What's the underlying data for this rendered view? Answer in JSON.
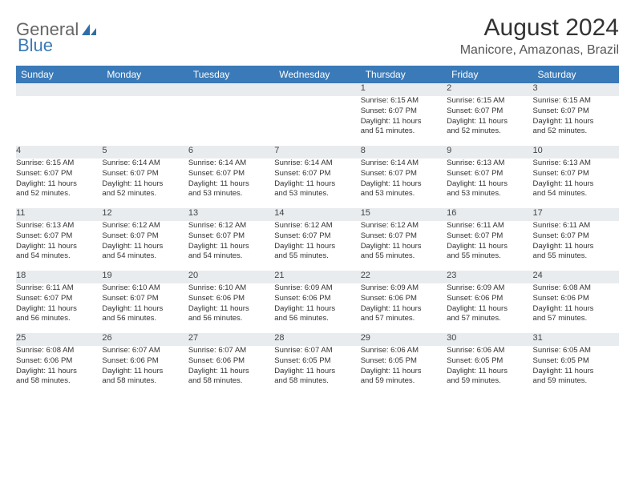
{
  "brand": {
    "part1": "General",
    "part2": "Blue"
  },
  "title": "August 2024",
  "location": "Manicore, Amazonas, Brazil",
  "colors": {
    "header_bg": "#3a7ab8",
    "header_text": "#ffffff",
    "daynum_bg": "#e9ecef",
    "page_bg": "#ffffff",
    "text": "#333333"
  },
  "weekdays": [
    "Sunday",
    "Monday",
    "Tuesday",
    "Wednesday",
    "Thursday",
    "Friday",
    "Saturday"
  ],
  "weeks": [
    [
      null,
      null,
      null,
      null,
      {
        "n": "1",
        "sr": "Sunrise: 6:15 AM",
        "ss": "Sunset: 6:07 PM",
        "d1": "Daylight: 11 hours",
        "d2": "and 51 minutes."
      },
      {
        "n": "2",
        "sr": "Sunrise: 6:15 AM",
        "ss": "Sunset: 6:07 PM",
        "d1": "Daylight: 11 hours",
        "d2": "and 52 minutes."
      },
      {
        "n": "3",
        "sr": "Sunrise: 6:15 AM",
        "ss": "Sunset: 6:07 PM",
        "d1": "Daylight: 11 hours",
        "d2": "and 52 minutes."
      }
    ],
    [
      {
        "n": "4",
        "sr": "Sunrise: 6:15 AM",
        "ss": "Sunset: 6:07 PM",
        "d1": "Daylight: 11 hours",
        "d2": "and 52 minutes."
      },
      {
        "n": "5",
        "sr": "Sunrise: 6:14 AM",
        "ss": "Sunset: 6:07 PM",
        "d1": "Daylight: 11 hours",
        "d2": "and 52 minutes."
      },
      {
        "n": "6",
        "sr": "Sunrise: 6:14 AM",
        "ss": "Sunset: 6:07 PM",
        "d1": "Daylight: 11 hours",
        "d2": "and 53 minutes."
      },
      {
        "n": "7",
        "sr": "Sunrise: 6:14 AM",
        "ss": "Sunset: 6:07 PM",
        "d1": "Daylight: 11 hours",
        "d2": "and 53 minutes."
      },
      {
        "n": "8",
        "sr": "Sunrise: 6:14 AM",
        "ss": "Sunset: 6:07 PM",
        "d1": "Daylight: 11 hours",
        "d2": "and 53 minutes."
      },
      {
        "n": "9",
        "sr": "Sunrise: 6:13 AM",
        "ss": "Sunset: 6:07 PM",
        "d1": "Daylight: 11 hours",
        "d2": "and 53 minutes."
      },
      {
        "n": "10",
        "sr": "Sunrise: 6:13 AM",
        "ss": "Sunset: 6:07 PM",
        "d1": "Daylight: 11 hours",
        "d2": "and 54 minutes."
      }
    ],
    [
      {
        "n": "11",
        "sr": "Sunrise: 6:13 AM",
        "ss": "Sunset: 6:07 PM",
        "d1": "Daylight: 11 hours",
        "d2": "and 54 minutes."
      },
      {
        "n": "12",
        "sr": "Sunrise: 6:12 AM",
        "ss": "Sunset: 6:07 PM",
        "d1": "Daylight: 11 hours",
        "d2": "and 54 minutes."
      },
      {
        "n": "13",
        "sr": "Sunrise: 6:12 AM",
        "ss": "Sunset: 6:07 PM",
        "d1": "Daylight: 11 hours",
        "d2": "and 54 minutes."
      },
      {
        "n": "14",
        "sr": "Sunrise: 6:12 AM",
        "ss": "Sunset: 6:07 PM",
        "d1": "Daylight: 11 hours",
        "d2": "and 55 minutes."
      },
      {
        "n": "15",
        "sr": "Sunrise: 6:12 AM",
        "ss": "Sunset: 6:07 PM",
        "d1": "Daylight: 11 hours",
        "d2": "and 55 minutes."
      },
      {
        "n": "16",
        "sr": "Sunrise: 6:11 AM",
        "ss": "Sunset: 6:07 PM",
        "d1": "Daylight: 11 hours",
        "d2": "and 55 minutes."
      },
      {
        "n": "17",
        "sr": "Sunrise: 6:11 AM",
        "ss": "Sunset: 6:07 PM",
        "d1": "Daylight: 11 hours",
        "d2": "and 55 minutes."
      }
    ],
    [
      {
        "n": "18",
        "sr": "Sunrise: 6:11 AM",
        "ss": "Sunset: 6:07 PM",
        "d1": "Daylight: 11 hours",
        "d2": "and 56 minutes."
      },
      {
        "n": "19",
        "sr": "Sunrise: 6:10 AM",
        "ss": "Sunset: 6:07 PM",
        "d1": "Daylight: 11 hours",
        "d2": "and 56 minutes."
      },
      {
        "n": "20",
        "sr": "Sunrise: 6:10 AM",
        "ss": "Sunset: 6:06 PM",
        "d1": "Daylight: 11 hours",
        "d2": "and 56 minutes."
      },
      {
        "n": "21",
        "sr": "Sunrise: 6:09 AM",
        "ss": "Sunset: 6:06 PM",
        "d1": "Daylight: 11 hours",
        "d2": "and 56 minutes."
      },
      {
        "n": "22",
        "sr": "Sunrise: 6:09 AM",
        "ss": "Sunset: 6:06 PM",
        "d1": "Daylight: 11 hours",
        "d2": "and 57 minutes."
      },
      {
        "n": "23",
        "sr": "Sunrise: 6:09 AM",
        "ss": "Sunset: 6:06 PM",
        "d1": "Daylight: 11 hours",
        "d2": "and 57 minutes."
      },
      {
        "n": "24",
        "sr": "Sunrise: 6:08 AM",
        "ss": "Sunset: 6:06 PM",
        "d1": "Daylight: 11 hours",
        "d2": "and 57 minutes."
      }
    ],
    [
      {
        "n": "25",
        "sr": "Sunrise: 6:08 AM",
        "ss": "Sunset: 6:06 PM",
        "d1": "Daylight: 11 hours",
        "d2": "and 58 minutes."
      },
      {
        "n": "26",
        "sr": "Sunrise: 6:07 AM",
        "ss": "Sunset: 6:06 PM",
        "d1": "Daylight: 11 hours",
        "d2": "and 58 minutes."
      },
      {
        "n": "27",
        "sr": "Sunrise: 6:07 AM",
        "ss": "Sunset: 6:06 PM",
        "d1": "Daylight: 11 hours",
        "d2": "and 58 minutes."
      },
      {
        "n": "28",
        "sr": "Sunrise: 6:07 AM",
        "ss": "Sunset: 6:05 PM",
        "d1": "Daylight: 11 hours",
        "d2": "and 58 minutes."
      },
      {
        "n": "29",
        "sr": "Sunrise: 6:06 AM",
        "ss": "Sunset: 6:05 PM",
        "d1": "Daylight: 11 hours",
        "d2": "and 59 minutes."
      },
      {
        "n": "30",
        "sr": "Sunrise: 6:06 AM",
        "ss": "Sunset: 6:05 PM",
        "d1": "Daylight: 11 hours",
        "d2": "and 59 minutes."
      },
      {
        "n": "31",
        "sr": "Sunrise: 6:05 AM",
        "ss": "Sunset: 6:05 PM",
        "d1": "Daylight: 11 hours",
        "d2": "and 59 minutes."
      }
    ]
  ]
}
